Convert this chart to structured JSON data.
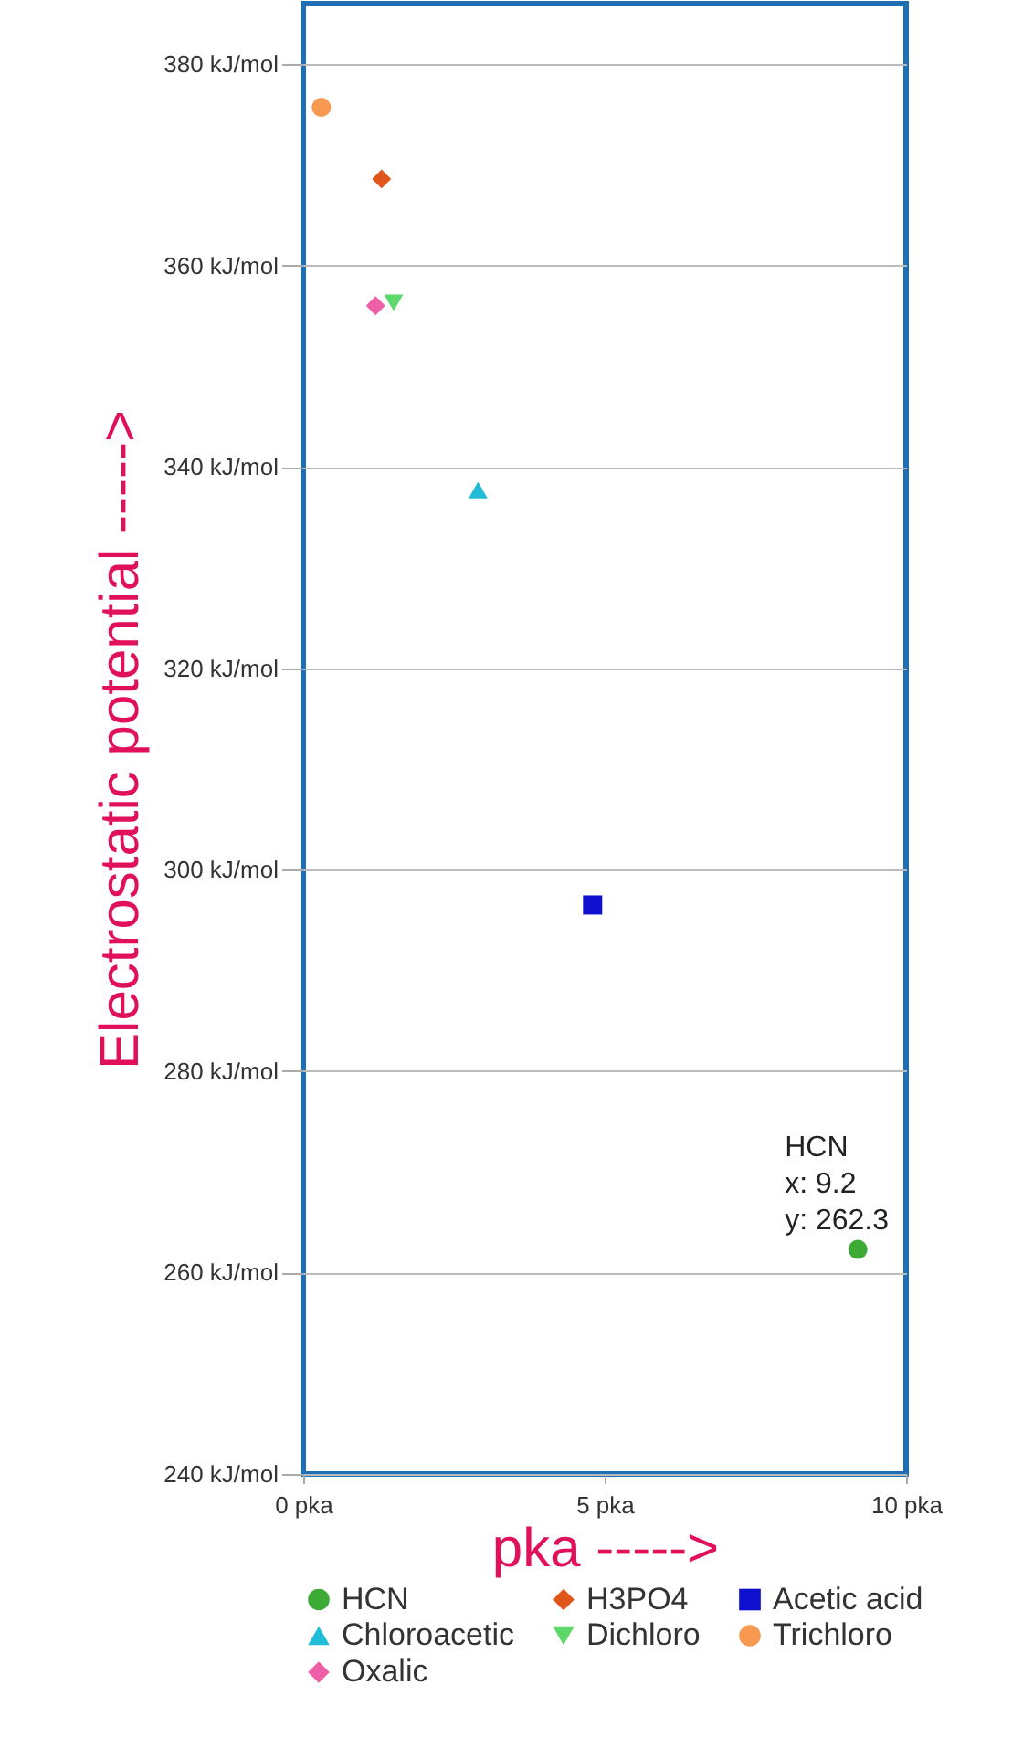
{
  "chart_data": {
    "type": "scatter",
    "xlabel": "pka ----->",
    "ylabel": "Electrostatic potential ----->",
    "xlim": [
      0,
      10
    ],
    "xticks": [
      {
        "value": 0,
        "label": "0 pka"
      },
      {
        "value": 5,
        "label": "5 pka"
      },
      {
        "value": 10,
        "label": "10 pka"
      }
    ],
    "ylim": [
      240,
      386
    ],
    "yticks": [
      {
        "value": 240,
        "label": "240 kJ/mol"
      },
      {
        "value": 260,
        "label": "260 kJ/mol"
      },
      {
        "value": 280,
        "label": "280 kJ/mol"
      },
      {
        "value": 300,
        "label": "300 kJ/mol"
      },
      {
        "value": 320,
        "label": "320 kJ/mol"
      },
      {
        "value": 340,
        "label": "340 kJ/mol"
      },
      {
        "value": 360,
        "label": "360 kJ/mol"
      },
      {
        "value": 380,
        "label": "380 kJ/mol"
      }
    ],
    "grid": "y",
    "legend": "bottom",
    "series": [
      {
        "name": "HCN",
        "color": "#3daa35",
        "marker": "circle",
        "x": [
          9.2
        ],
        "values": [
          262.3
        ]
      },
      {
        "name": "H3PO4",
        "color": "#e0561a",
        "marker": "diamond",
        "x": [
          1.3
        ],
        "values": [
          368.6
        ]
      },
      {
        "name": "Acetic acid",
        "color": "#1010d0",
        "marker": "square",
        "x": [
          4.8
        ],
        "values": [
          296.5
        ]
      },
      {
        "name": "Chloroacetic",
        "color": "#22bcd8",
        "marker": "triangle",
        "x": [
          2.9
        ],
        "values": [
          337.7
        ]
      },
      {
        "name": "Dichloro",
        "color": "#5ed86a",
        "marker": "triangle-down",
        "x": [
          1.5
        ],
        "values": [
          356.3
        ]
      },
      {
        "name": "Trichloro",
        "color": "#f79950",
        "marker": "circle",
        "x": [
          0.3
        ],
        "values": [
          375.7
        ]
      },
      {
        "name": "Oxalic",
        "color": "#ef5fa7",
        "marker": "diamond",
        "x": [
          1.2
        ],
        "values": [
          356
        ]
      }
    ],
    "annotations": [
      {
        "text": "HCN\nx: 9.2\ny: 262.3",
        "x": 9.2,
        "y": 262.3
      }
    ]
  }
}
